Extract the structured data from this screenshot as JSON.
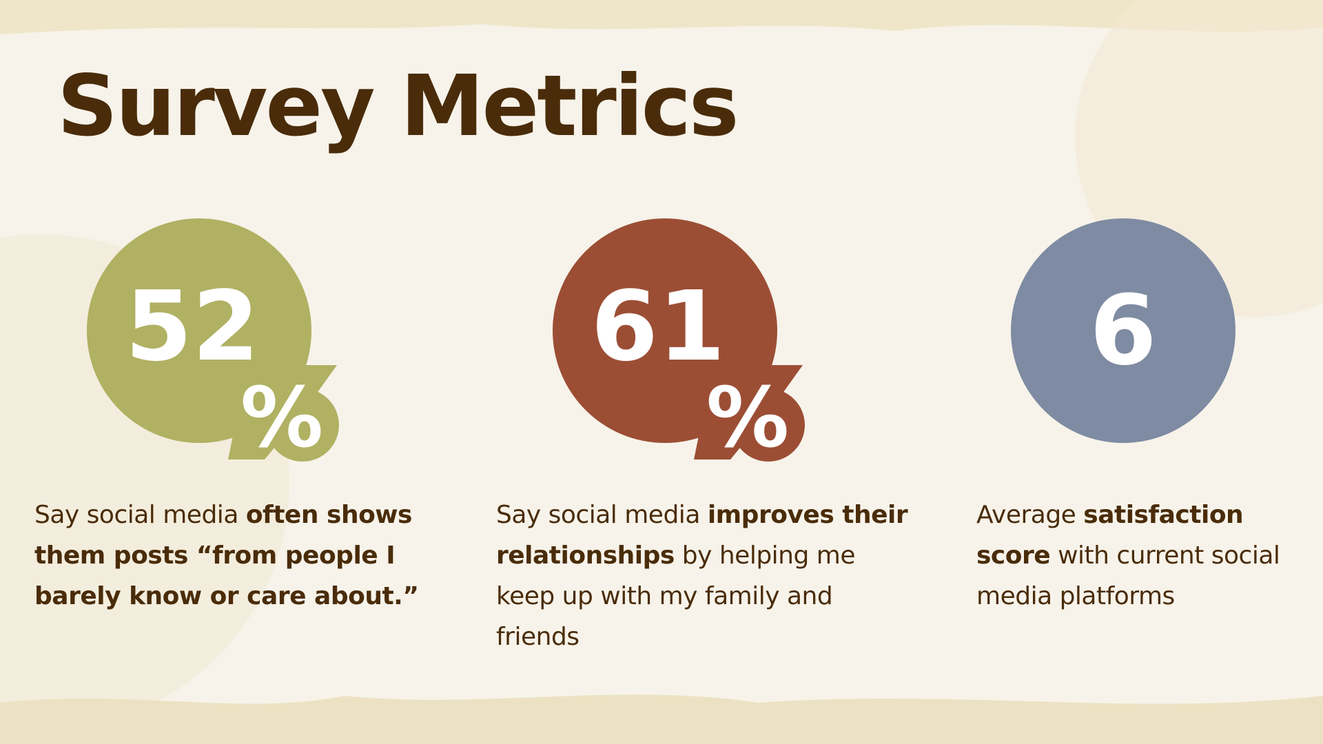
{
  "title": "Survey Metrics",
  "metrics": [
    {
      "value": "52",
      "unit": "%",
      "color": "#b0b162",
      "description": [
        {
          "text": "Say social media ",
          "bold": false
        },
        {
          "text": "often shows them posts “from people I barely know or care about.”",
          "bold": true
        }
      ]
    },
    {
      "value": "61",
      "unit": "%",
      "color": "#9c4e35",
      "description": [
        {
          "text": "Say social media ",
          "bold": false
        },
        {
          "text": "improves their relationships",
          "bold": true
        },
        {
          "text": " by helping me keep up with my family and friends",
          "bold": false
        }
      ]
    },
    {
      "value": "6",
      "color": "#7e8ba2",
      "description": [
        {
          "text": "Average ",
          "bold": false
        },
        {
          "text": "satisfaction score",
          "bold": true
        },
        {
          "text": " with current social media platforms",
          "bold": false
        }
      ]
    }
  ]
}
